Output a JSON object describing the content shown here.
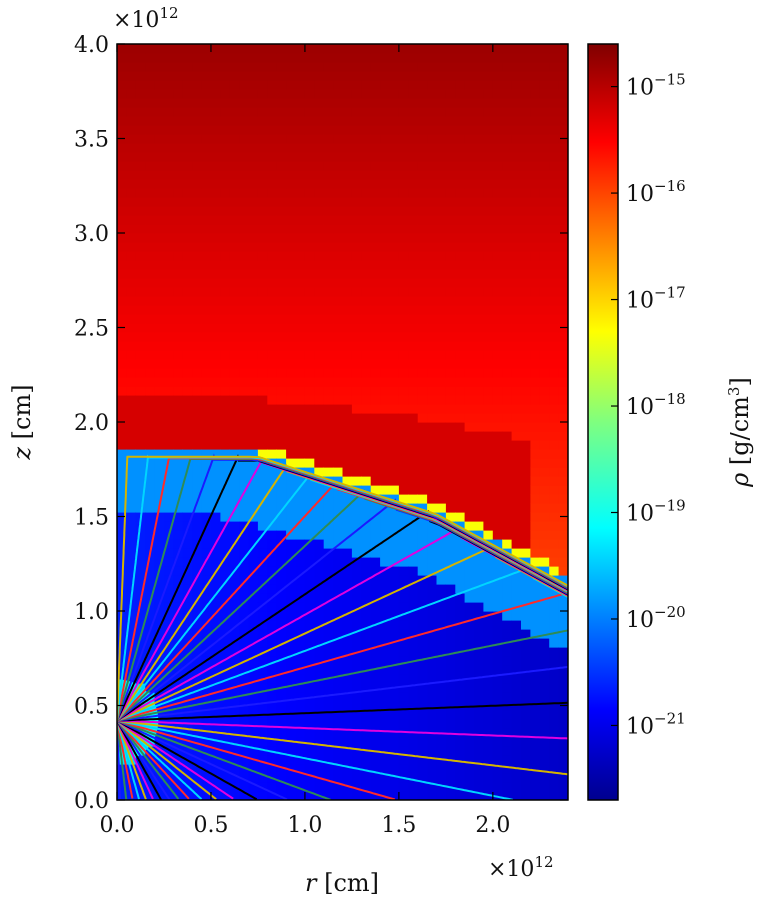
{
  "chart_data": {
    "type": "heatmap",
    "title": "",
    "xlabel_symbol": "r",
    "xlabel_unit": "[cm]",
    "ylabel_symbol": "z",
    "ylabel_unit": "[cm]",
    "x_multiplier": {
      "base": "×10",
      "exp": "12"
    },
    "y_multiplier": {
      "base": "×10",
      "exp": "12"
    },
    "xlim": [
      0.0,
      2.4
    ],
    "ylim": [
      0.0,
      4.0
    ],
    "x_ticks": [
      0.0,
      0.5,
      1.0,
      1.5,
      2.0
    ],
    "x_tick_labels": [
      "0.0",
      "0.5",
      "1.0",
      "1.5",
      "2.0"
    ],
    "y_ticks": [
      0.0,
      0.5,
      1.0,
      1.5,
      2.0,
      2.5,
      3.0,
      3.5,
      4.0
    ],
    "y_tick_labels": [
      "0.0",
      "0.5",
      "1.0",
      "1.5",
      "2.0",
      "2.5",
      "3.0",
      "3.5",
      "4.0"
    ],
    "colorbar": {
      "label_symbol": "ρ",
      "label_unit_pre": "[g/cm",
      "label_unit_exp": "3",
      "label_unit_post": "]",
      "scale": "log",
      "range_log10": [
        -21.7,
        -14.6
      ],
      "ticks": [
        {
          "base": "10",
          "exp": "−15",
          "log": -15
        },
        {
          "base": "10",
          "exp": "−16",
          "log": -16
        },
        {
          "base": "10",
          "exp": "−17",
          "log": -17
        },
        {
          "base": "10",
          "exp": "−18",
          "log": -18
        },
        {
          "base": "10",
          "exp": "−19",
          "log": -19
        },
        {
          "base": "10",
          "exp": "−20",
          "log": -20
        },
        {
          "base": "10",
          "exp": "−21",
          "log": -21
        }
      ],
      "colormap": "jet"
    },
    "regions": {
      "ambient_top_log_rho": -14.8,
      "ambient_log_rho": -15.6,
      "shell_log_rho": -15.2,
      "shell_inner_z_at_r0": 1.88,
      "cavity_log_rho": -20.6,
      "inner_cavity_log_rho": -21.2,
      "source_center": [
        0.0,
        0.42
      ],
      "source_radius": 0.22
    },
    "streamlines": {
      "colors": [
        "#1a1aff",
        "#2e8b57",
        "#ff2a2a",
        "#00d5ff",
        "#d4b400",
        "#e000e0",
        "#000000"
      ],
      "source_center": [
        0.0,
        0.42
      ]
    }
  }
}
